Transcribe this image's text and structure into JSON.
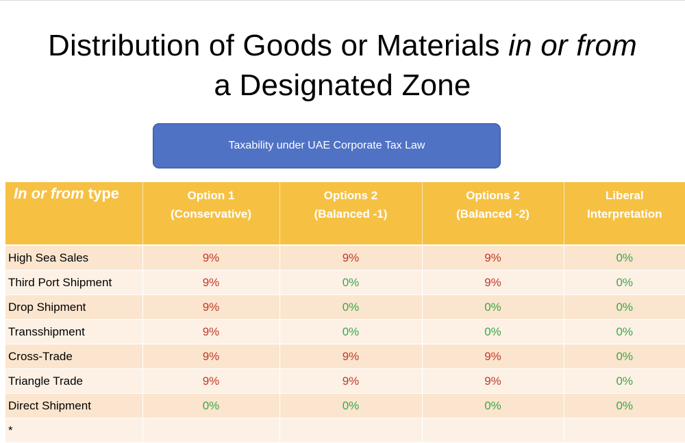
{
  "title": {
    "line1_start": "Distribution of Goods or Materials ",
    "line1_italic": "in or from",
    "line2": "a Designated Zone"
  },
  "banner": {
    "text": "Taxability under UAE Corporate Tax Law"
  },
  "colors": {
    "header_bg": "#f6c143",
    "banner_bg": "#4f72c4",
    "taxable": "#c0392b",
    "exempt": "#3aa64a"
  },
  "table": {
    "header": {
      "first_italic": "In or from",
      "first_rest": " type",
      "columns": [
        {
          "line1": "Option 1",
          "line2": "(Conservative)"
        },
        {
          "line1": "Options 2",
          "line2": "(Balanced -1)"
        },
        {
          "line1": "Options 2",
          "line2": "(Balanced -2)"
        },
        {
          "line1": "Liberal",
          "line2": "Interpretation"
        }
      ]
    },
    "rows": [
      {
        "label": "High Sea Sales",
        "values": [
          "9%",
          "9%",
          "9%",
          "0%"
        ]
      },
      {
        "label": "Third Port Shipment",
        "values": [
          "9%",
          "0%",
          "9%",
          "0%"
        ]
      },
      {
        "label": "Drop Shipment",
        "values": [
          "9%",
          "0%",
          "0%",
          "0%"
        ]
      },
      {
        "label": "Transshipment",
        "values": [
          "9%",
          "0%",
          "0%",
          "0%"
        ]
      },
      {
        "label": "Cross-Trade",
        "values": [
          "9%",
          "9%",
          "9%",
          "0%"
        ]
      },
      {
        "label": "Triangle Trade",
        "values": [
          "9%",
          "9%",
          "9%",
          "0%"
        ]
      },
      {
        "label": "Direct Shipment",
        "values": [
          "0%",
          "0%",
          "0%",
          "0%"
        ]
      },
      {
        "label": "*",
        "values": [
          "",
          "",
          "",
          ""
        ]
      }
    ]
  }
}
